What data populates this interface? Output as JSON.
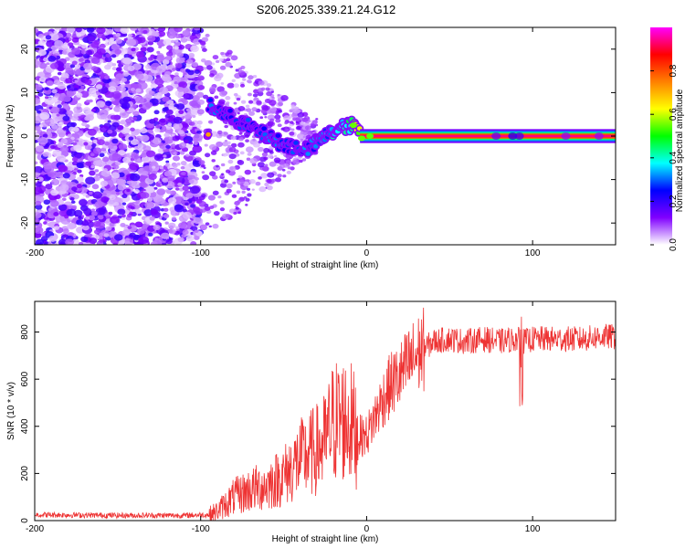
{
  "title": "S206.2025.339.21.24.G12",
  "chart_data": [
    {
      "type": "heatmap",
      "xlabel": "Height of straight line (km)",
      "ylabel": "Frequency (Hz)",
      "xlim": [
        -200,
        150
      ],
      "ylim": [
        -25,
        25
      ],
      "xticks": [
        -200,
        -100,
        0,
        100
      ],
      "xtick_labels": [
        "-200",
        "-100",
        "0",
        "100"
      ],
      "yticks": [
        -20,
        -10,
        0,
        10,
        20
      ],
      "ytick_labels": [
        "-20",
        "-10",
        "0",
        "10",
        "20"
      ],
      "colorbar": {
        "label": "Normalized spectral amplitude",
        "range": [
          0,
          1
        ],
        "ticks": [
          0.0,
          0.2,
          0.4,
          0.6,
          0.8
        ],
        "tick_labels": [
          "0.0",
          "0.2",
          "0.4",
          "0.6",
          "0.8"
        ],
        "colors": [
          "#ffffff",
          "#8000ff",
          "#0000ff",
          "#00ffff",
          "#00ff00",
          "#ffff00",
          "#ff8000",
          "#ff0000",
          "#ff00ff"
        ]
      },
      "ridge": {
        "description": "Strong narrow tone near 0 Hz for heights above about -5 km",
        "x": [
          -95,
          -80,
          -65,
          -50,
          -35,
          -25,
          -15,
          -8,
          -2,
          10,
          40,
          80,
          120,
          150
        ],
        "freq": [
          7,
          4,
          1,
          -2,
          -3,
          0,
          2,
          2.5,
          -0.5,
          0,
          0,
          0,
          0,
          0
        ],
        "amplitude": [
          0.3,
          0.25,
          0.3,
          0.3,
          0.3,
          0.35,
          0.45,
          0.5,
          0.95,
          0.95,
          0.95,
          0.95,
          0.95,
          0.95
        ]
      }
    },
    {
      "type": "line",
      "xlabel": "Height of straight line (km)",
      "ylabel": "SNR (10 * v/v)",
      "xlim": [
        -200,
        150
      ],
      "ylim": [
        0,
        930
      ],
      "xticks": [
        -200,
        -100,
        0,
        100
      ],
      "xtick_labels": [
        "-200",
        "-100",
        "0",
        "100"
      ],
      "yticks": [
        0,
        200,
        400,
        600,
        800
      ],
      "ytick_labels": [
        "0",
        "200",
        "400",
        "600",
        "800"
      ],
      "color": "#ee3333",
      "series": [
        {
          "name": "SNR",
          "x": [
            -200,
            -150,
            -110,
            -95,
            -90,
            -80,
            -70,
            -60,
            -50,
            -40,
            -30,
            -25,
            -20,
            -15,
            -10,
            -5,
            0,
            5,
            10,
            15,
            20,
            25,
            30,
            35,
            40,
            50,
            60,
            70,
            80,
            90,
            95,
            100,
            110,
            120,
            130,
            140,
            150
          ],
          "y": [
            25,
            22,
            22,
            25,
            40,
            100,
            130,
            150,
            190,
            260,
            300,
            330,
            420,
            430,
            420,
            360,
            360,
            440,
            520,
            580,
            610,
            660,
            700,
            730,
            760,
            770,
            760,
            770,
            760,
            770,
            760,
            770,
            770,
            770,
            770,
            780,
            780
          ]
        }
      ]
    }
  ]
}
